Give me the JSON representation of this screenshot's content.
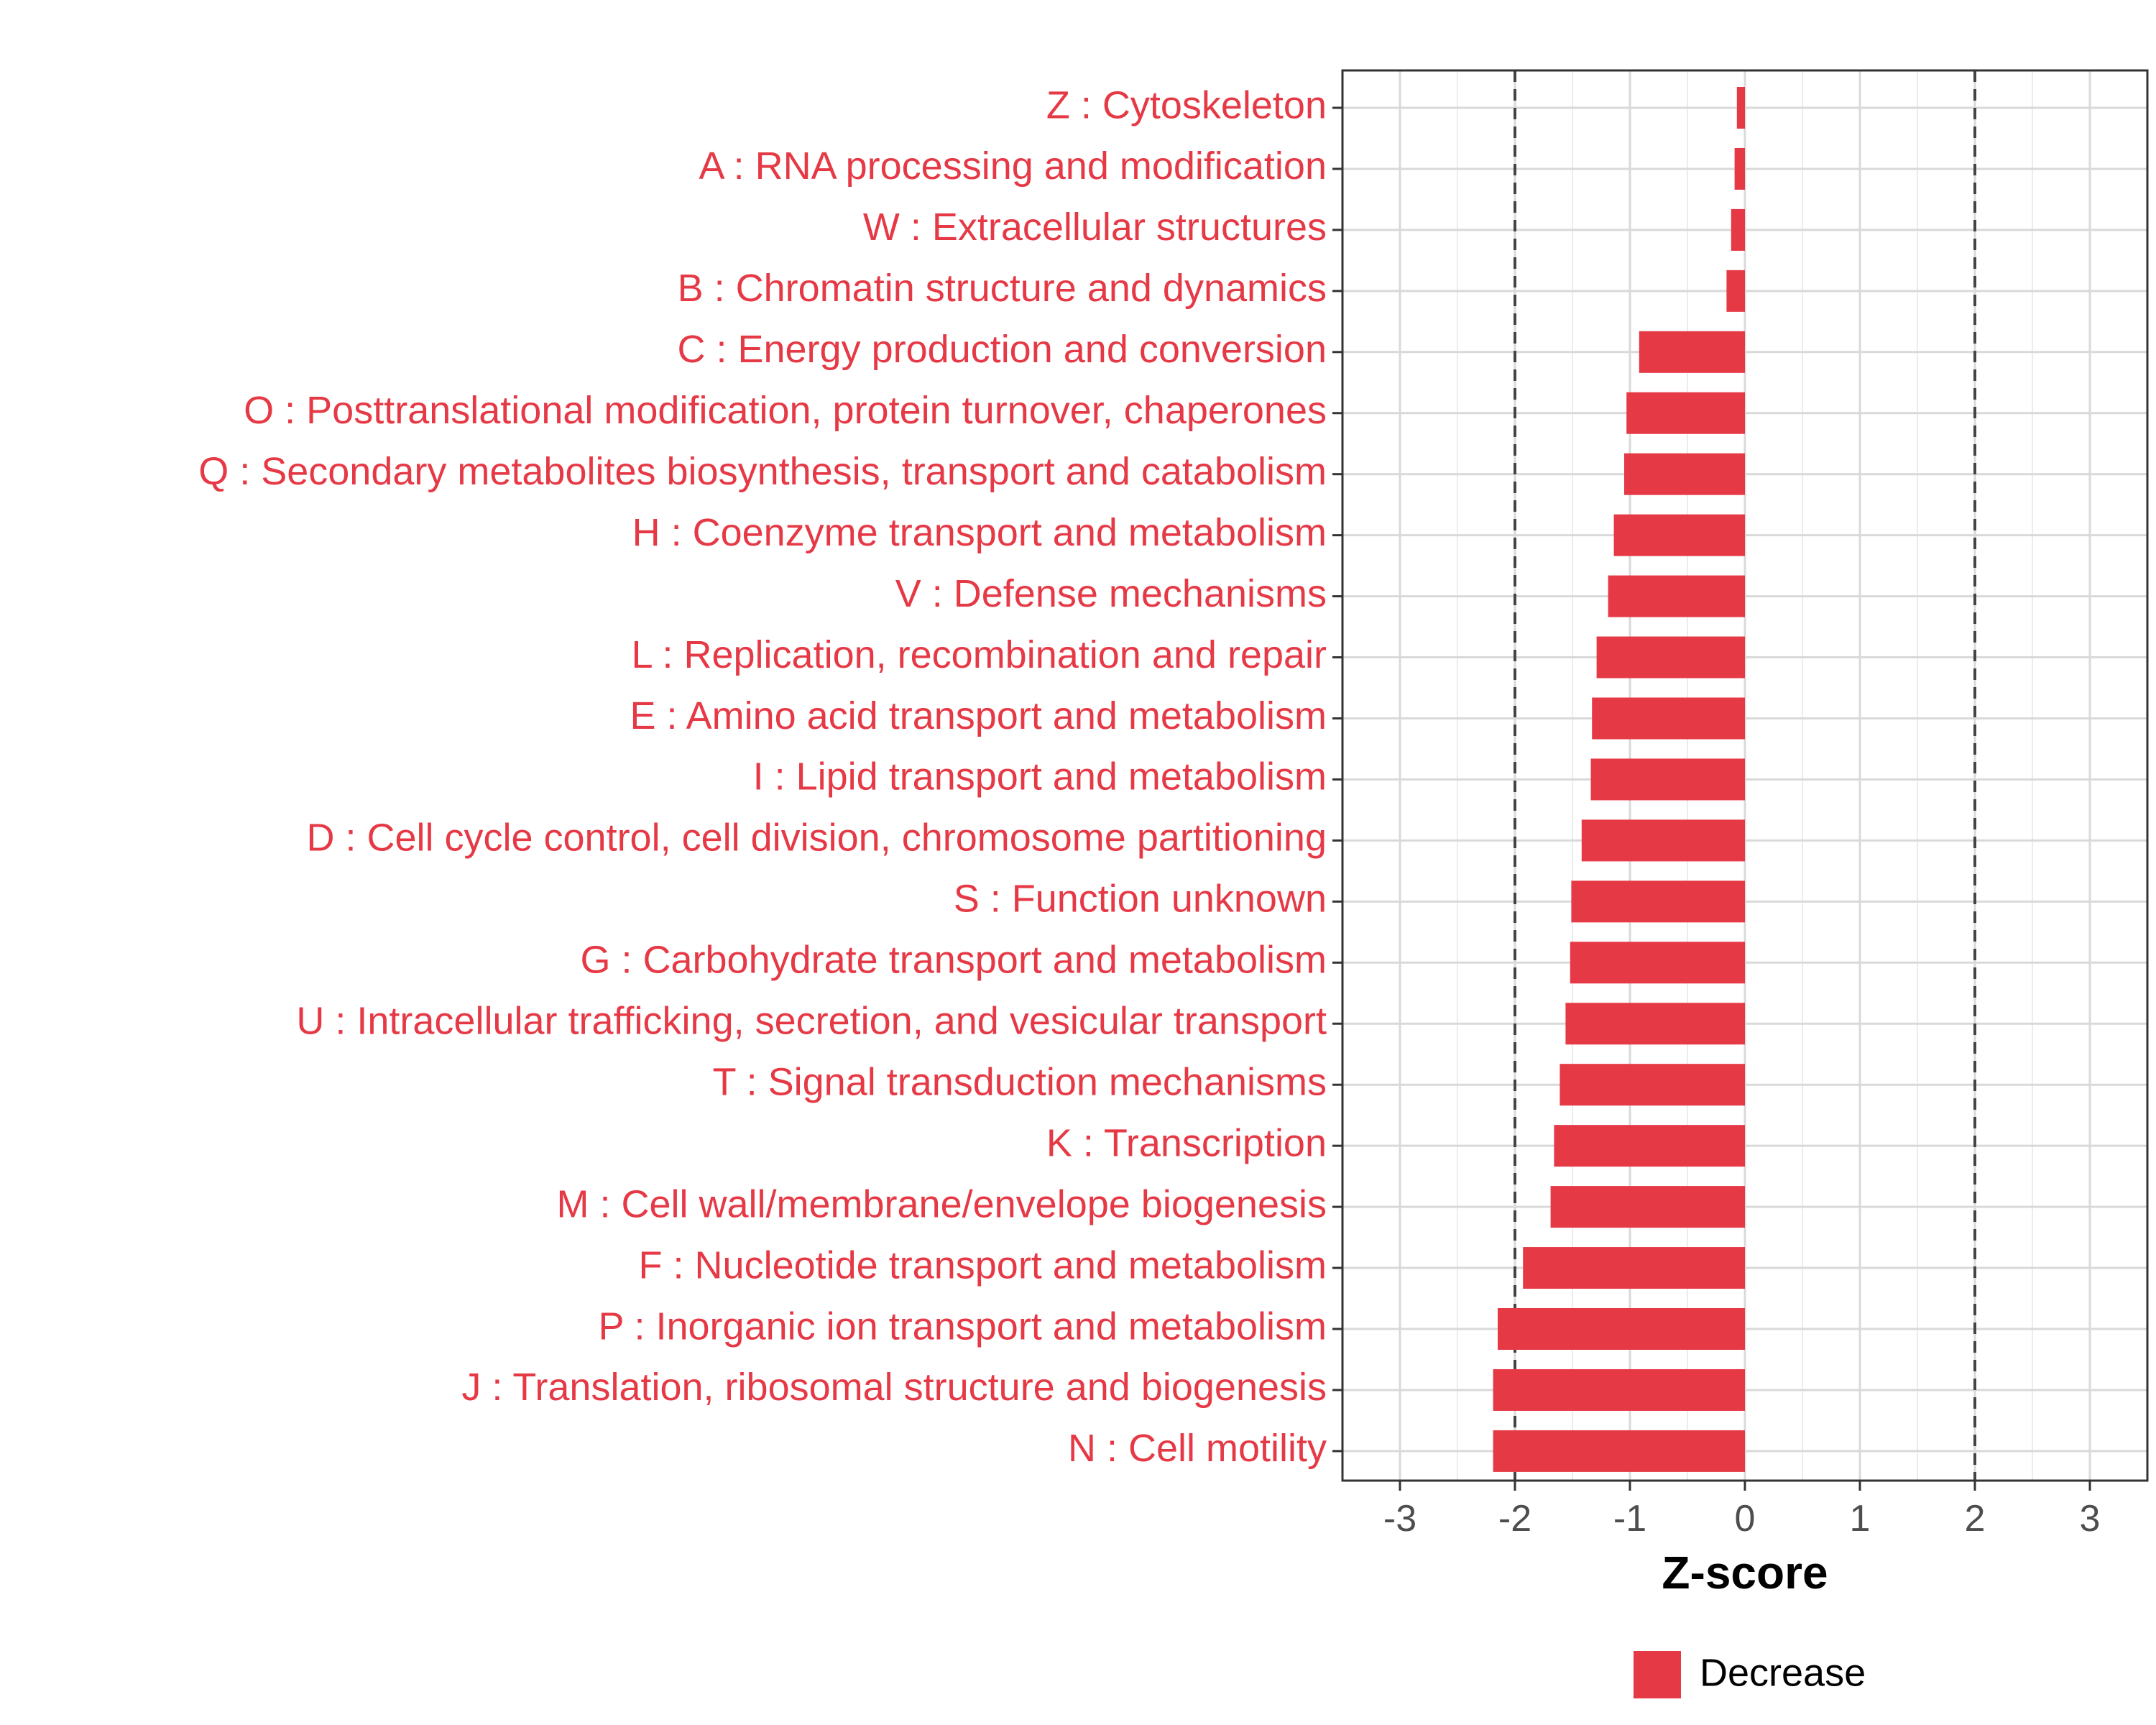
{
  "chart_data": {
    "type": "bar",
    "orientation": "horizontal",
    "categories": [
      "Z : Cytoskeleton",
      "A : RNA processing and modification",
      "W : Extracellular structures",
      "B : Chromatin structure and dynamics",
      "C : Energy production and conversion",
      "O : Posttranslational modification, protein turnover, chaperones",
      "Q : Secondary metabolites biosynthesis, transport and catabolism",
      "H : Coenzyme transport and metabolism",
      "V : Defense mechanisms",
      "L : Replication, recombination and repair",
      "E : Amino acid transport and metabolism",
      "I : Lipid transport and metabolism",
      "D : Cell cycle control, cell division, chromosome partitioning",
      "S : Function unknown",
      "G : Carbohydrate transport and metabolism",
      "U : Intracellular trafficking, secretion, and vesicular transport",
      "T : Signal transduction mechanisms",
      "K : Transcription",
      "M : Cell wall/membrane/envelope biogenesis",
      "F : Nucleotide transport and metabolism",
      "P : Inorganic ion transport and metabolism",
      "J : Translation, ribosomal structure and biogenesis",
      "N : Cell motility"
    ],
    "values": [
      -0.07,
      -0.09,
      -0.12,
      -0.16,
      -0.92,
      -1.03,
      -1.05,
      -1.14,
      -1.19,
      -1.29,
      -1.33,
      -1.34,
      -1.42,
      -1.51,
      -1.52,
      -1.56,
      -1.61,
      -1.66,
      -1.69,
      -1.93,
      -2.15,
      -2.19,
      -2.19
    ],
    "series_name": "Decrease",
    "bar_color": "#e63946",
    "label_color": "#e63946",
    "xlabel": "Z-score",
    "ylabel": "",
    "xlim": [
      -3.5,
      3.5
    ],
    "xticks": [
      -3,
      -2,
      -1,
      0,
      1,
      2,
      3
    ],
    "xtick_labels": [
      "-3",
      "-2",
      "-1",
      "0",
      "1",
      "2",
      "3"
    ],
    "reference_lines": [
      -2,
      2
    ],
    "grid": true,
    "legend": {
      "position": "bottom",
      "entries": [
        {
          "label": "Decrease",
          "color": "#e63946"
        }
      ]
    }
  }
}
